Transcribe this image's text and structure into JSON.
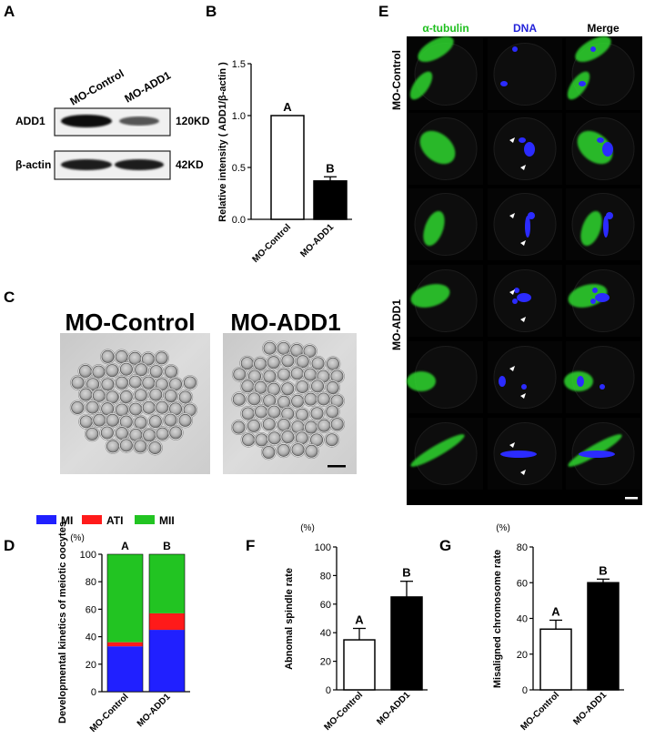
{
  "panels": {
    "A": {
      "letter": "A",
      "lanes": [
        "MO-Control",
        "MO-ADD1"
      ],
      "rows": [
        {
          "protein": "ADD1",
          "size": "120KD"
        },
        {
          "protein": "β-actin",
          "size": "42KD"
        }
      ]
    },
    "B": {
      "letter": "B"
    },
    "C": {
      "letter": "C",
      "labels": [
        "MO-Control",
        "MO-ADD1"
      ]
    },
    "D": {
      "letter": "D"
    },
    "E": {
      "letter": "E",
      "columns": [
        "α-tubulin",
        "DNA",
        "Merge"
      ],
      "column_colors": [
        "#1fbf1f",
        "#2323d9",
        "#000000"
      ],
      "row_groups": [
        "MO-Control",
        "MO-ADD1"
      ]
    },
    "F": {
      "letter": "F"
    },
    "G": {
      "letter": "G"
    }
  },
  "chart_data": [
    {
      "id": "B",
      "type": "bar",
      "categories": [
        "MO-Control",
        "MO-ADD1"
      ],
      "values": [
        1.0,
        0.37
      ],
      "errors": [
        0,
        0.04
      ],
      "fills": [
        "#ffffff",
        "#000000"
      ],
      "letters": [
        "A",
        "B"
      ],
      "ylabel": "Relative intensity ( ADD1/β-actin )",
      "yticks": [
        "0.0",
        "0.5",
        "1.0",
        "1.5"
      ],
      "ylim": [
        0,
        1.5
      ]
    },
    {
      "id": "D",
      "type": "bar",
      "stacked": true,
      "categories": [
        "MO-Control",
        "MO-ADD1"
      ],
      "series": [
        {
          "name": "MI",
          "color": "#2020ff",
          "values": [
            33,
            45
          ]
        },
        {
          "name": "ATI",
          "color": "#ff1a1a",
          "values": [
            3,
            12
          ]
        },
        {
          "name": "MII",
          "color": "#22c422",
          "values": [
            64,
            43
          ]
        }
      ],
      "letters": [
        "A",
        "B"
      ],
      "unit": "(%)",
      "ylabel": "Developmental kinetics of meiotic oocytes",
      "yticks": [
        "0",
        "20",
        "40",
        "60",
        "80",
        "100"
      ],
      "ylim": [
        0,
        100
      ]
    },
    {
      "id": "F",
      "type": "bar",
      "categories": [
        "MO-Control",
        "MO-ADD1"
      ],
      "values": [
        35,
        65
      ],
      "errors": [
        8,
        11
      ],
      "fills": [
        "#ffffff",
        "#000000"
      ],
      "letters": [
        "A",
        "B"
      ],
      "unit": "(%)",
      "ylabel": "Abnomal spindle rate",
      "yticks": [
        "0",
        "20",
        "40",
        "60",
        "80",
        "100"
      ],
      "ylim": [
        0,
        100
      ]
    },
    {
      "id": "G",
      "type": "bar",
      "categories": [
        "MO-Control",
        "MO-ADD1"
      ],
      "values": [
        34,
        60
      ],
      "errors": [
        5,
        2
      ],
      "fills": [
        "#ffffff",
        "#000000"
      ],
      "letters": [
        "A",
        "B"
      ],
      "unit": "(%)",
      "ylabel": "Misaligned chromosome rate",
      "yticks": [
        "0",
        "20",
        "40",
        "60",
        "80"
      ],
      "ylim": [
        0,
        80
      ]
    }
  ]
}
